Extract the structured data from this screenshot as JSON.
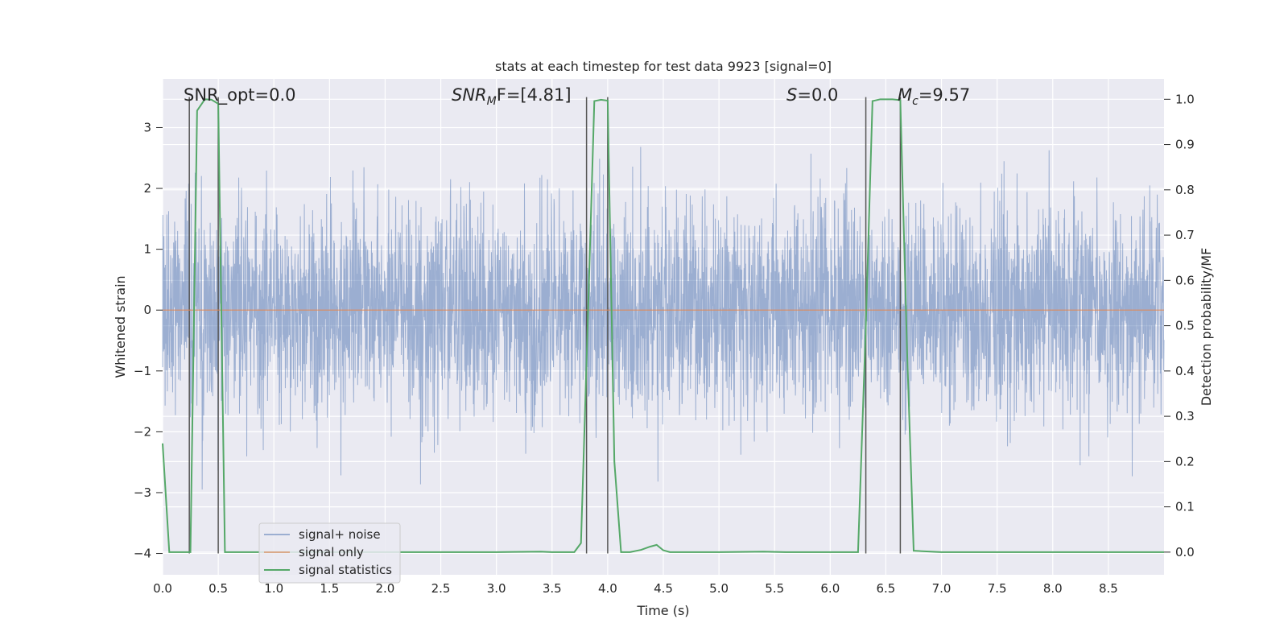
{
  "chart_data": {
    "type": "line",
    "title": "stats at each timestep for test data 9923 [signal=0]",
    "xlabel": "Time (s)",
    "ylabel": "Whitened strain",
    "y2label": "Detection probability/MF",
    "xlim": [
      0,
      9
    ],
    "ylim": [
      -4.35,
      3.8
    ],
    "y2lim": [
      -0.05,
      1.045
    ],
    "x_ticks": [
      "0.0",
      "0.5",
      "1.0",
      "1.5",
      "2.0",
      "2.5",
      "3.0",
      "3.5",
      "4.0",
      "4.5",
      "5.0",
      "5.5",
      "6.0",
      "6.5",
      "7.0",
      "7.5",
      "8.0",
      "8.5"
    ],
    "y_ticks": [
      "3",
      "2",
      "1",
      "0",
      "−1",
      "−2",
      "−3",
      "−4"
    ],
    "y2_ticks": [
      "1.0",
      "0.9",
      "0.8",
      "0.7",
      "0.6",
      "0.5",
      "0.4",
      "0.3",
      "0.2",
      "0.1",
      "0.0"
    ],
    "annotations": {
      "snr_opt": "SNR_opt=0.0",
      "snr_mf_main": "SNR",
      "snr_mf_sub": "M",
      "snr_mf_rest": "F=[4.81]",
      "s_main": "S",
      "s_rest": "=0.0",
      "mc_main": "M",
      "mc_sub": "c",
      "mc_rest": "=9.57"
    },
    "legend": {
      "position": "lower-left",
      "entries": [
        "signal+ noise",
        "signal only",
        "signal statistics"
      ]
    },
    "series": [
      {
        "name": "signal+ noise",
        "color": "#4c72b0",
        "description_only": false,
        "noise_std": 0.85,
        "noise_clip": [
          -4.0,
          3.15
        ]
      },
      {
        "name": "signal only",
        "color": "#dd8452",
        "x": [
          0,
          9
        ],
        "y": [
          0,
          0
        ]
      },
      {
        "name": "signal statistics",
        "color": "#55a868",
        "x": [
          0.0,
          0.06,
          0.25,
          0.31,
          0.38,
          0.44,
          0.5,
          0.56,
          0.6,
          0.75,
          1.0,
          2.0,
          3.0,
          3.4,
          3.5,
          3.7,
          3.76,
          3.82,
          3.88,
          3.94,
          4.0,
          4.06,
          4.12,
          4.2,
          4.3,
          4.38,
          4.44,
          4.5,
          4.56,
          4.8,
          5.0,
          5.4,
          5.6,
          6.0,
          6.25,
          6.32,
          6.38,
          6.45,
          6.56,
          6.63,
          6.69,
          6.75,
          7.0,
          8.0,
          9.0
        ],
        "y": [
          0.24,
          0.0,
          0.0,
          0.975,
          1.0,
          0.999,
          0.99,
          0.0,
          0.0,
          0.0,
          0.0,
          0.0,
          0.0,
          0.001,
          0.0,
          0.0,
          0.02,
          0.5,
          0.996,
          0.999,
          0.997,
          0.2,
          0.0,
          0.0,
          0.005,
          0.012,
          0.016,
          0.004,
          0.0,
          0.0,
          0.0,
          0.001,
          0.0,
          0.0,
          0.0,
          0.5,
          0.996,
          1.0,
          1.0,
          0.998,
          0.45,
          0.003,
          0.0,
          0.0,
          0.0
        ]
      }
    ],
    "vertical_markers": [
      0.24,
      0.5,
      3.81,
      4.0,
      6.32,
      6.63
    ]
  }
}
